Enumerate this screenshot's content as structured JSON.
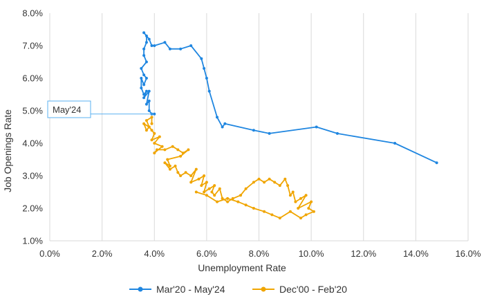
{
  "chart_data": {
    "type": "scatter",
    "xlabel": "Unemployment Rate",
    "ylabel": "Job Openings Rate",
    "xlim": [
      0,
      16
    ],
    "ylim": [
      1,
      8
    ],
    "x_ticks": [
      "0.0%",
      "2.0%",
      "4.0%",
      "6.0%",
      "8.0%",
      "10.0%",
      "12.0%",
      "14.0%",
      "16.0%"
    ],
    "y_ticks": [
      "1.0%",
      "2.0%",
      "3.0%",
      "4.0%",
      "5.0%",
      "6.0%",
      "7.0%",
      "8.0%"
    ],
    "grid": "vertical",
    "legend_position": "bottom",
    "annotation": {
      "text": "May'24",
      "x": 3.95,
      "y": 4.9
    },
    "series": [
      {
        "name": "Mar'20 - May'24",
        "color": "#1f86e0",
        "mode": "lines+markers",
        "points": [
          [
            14.8,
            3.4
          ],
          [
            13.2,
            4.0
          ],
          [
            11.0,
            4.3
          ],
          [
            10.2,
            4.5
          ],
          [
            8.4,
            4.3
          ],
          [
            7.8,
            4.4
          ],
          [
            6.7,
            4.6
          ],
          [
            6.6,
            4.5
          ],
          [
            6.4,
            4.8
          ],
          [
            6.1,
            5.6
          ],
          [
            6.0,
            6.0
          ],
          [
            5.9,
            6.3
          ],
          [
            5.8,
            6.6
          ],
          [
            5.4,
            7.0
          ],
          [
            5.0,
            6.9
          ],
          [
            4.6,
            6.9
          ],
          [
            4.4,
            7.1
          ],
          [
            4.0,
            7.0
          ],
          [
            3.9,
            7.0
          ],
          [
            3.8,
            7.2
          ],
          [
            3.6,
            7.4
          ],
          [
            3.7,
            7.3
          ],
          [
            3.7,
            7.1
          ],
          [
            3.6,
            6.9
          ],
          [
            3.6,
            6.7
          ],
          [
            3.7,
            6.5
          ],
          [
            3.5,
            6.3
          ],
          [
            3.6,
            6.1
          ],
          [
            3.7,
            6.0
          ],
          [
            3.6,
            5.8
          ],
          [
            3.5,
            6.0
          ],
          [
            3.5,
            5.7
          ],
          [
            3.6,
            5.5
          ],
          [
            3.7,
            5.6
          ],
          [
            3.6,
            5.4
          ],
          [
            3.8,
            5.6
          ],
          [
            3.7,
            5.2
          ],
          [
            3.8,
            5.3
          ],
          [
            3.8,
            5.0
          ],
          [
            3.9,
            4.9
          ],
          [
            4.0,
            4.9
          ]
        ]
      },
      {
        "name": "Dec'00 - Feb'20",
        "color": "#f0a500",
        "mode": "lines+markers",
        "points": [
          [
            3.9,
            4.6
          ],
          [
            3.9,
            4.8
          ],
          [
            3.7,
            4.7
          ],
          [
            3.8,
            4.5
          ],
          [
            3.6,
            4.6
          ],
          [
            3.7,
            4.4
          ],
          [
            3.8,
            4.5
          ],
          [
            3.9,
            4.4
          ],
          [
            4.0,
            4.3
          ],
          [
            3.9,
            4.1
          ],
          [
            4.2,
            4.2
          ],
          [
            4.0,
            4.0
          ],
          [
            4.3,
            3.9
          ],
          [
            4.0,
            3.7
          ],
          [
            4.1,
            3.8
          ],
          [
            4.4,
            3.8
          ],
          [
            4.7,
            3.9
          ],
          [
            4.9,
            3.8
          ],
          [
            5.1,
            3.7
          ],
          [
            5.3,
            3.8
          ],
          [
            5.0,
            3.6
          ],
          [
            4.5,
            3.5
          ],
          [
            4.6,
            3.3
          ],
          [
            4.4,
            3.4
          ],
          [
            4.6,
            3.2
          ],
          [
            4.8,
            3.3
          ],
          [
            4.9,
            3.1
          ],
          [
            5.0,
            3.0
          ],
          [
            5.2,
            3.1
          ],
          [
            5.4,
            3.0
          ],
          [
            5.6,
            3.2
          ],
          [
            5.4,
            2.8
          ],
          [
            5.7,
            2.9
          ],
          [
            5.9,
            3.0
          ],
          [
            5.8,
            2.7
          ],
          [
            6.0,
            2.8
          ],
          [
            5.9,
            2.5
          ],
          [
            6.1,
            2.6
          ],
          [
            6.3,
            2.7
          ],
          [
            6.2,
            2.5
          ],
          [
            6.3,
            2.4
          ],
          [
            6.5,
            2.6
          ],
          [
            6.6,
            2.3
          ],
          [
            6.8,
            2.2
          ],
          [
            7.0,
            2.3
          ],
          [
            7.3,
            2.4
          ],
          [
            7.5,
            2.6
          ],
          [
            7.8,
            2.8
          ],
          [
            8.0,
            2.9
          ],
          [
            8.2,
            2.8
          ],
          [
            8.4,
            2.9
          ],
          [
            8.6,
            2.8
          ],
          [
            8.8,
            2.7
          ],
          [
            9.0,
            2.9
          ],
          [
            9.1,
            2.7
          ],
          [
            9.2,
            2.4
          ],
          [
            9.3,
            2.5
          ],
          [
            9.4,
            2.2
          ],
          [
            9.6,
            2.3
          ],
          [
            9.8,
            2.4
          ],
          [
            9.5,
            2.0
          ],
          [
            10.0,
            2.2
          ],
          [
            9.9,
            2.0
          ],
          [
            10.1,
            1.9
          ],
          [
            9.8,
            1.8
          ],
          [
            9.6,
            1.7
          ],
          [
            9.2,
            1.9
          ],
          [
            8.8,
            1.7
          ],
          [
            8.5,
            1.8
          ],
          [
            8.2,
            1.9
          ],
          [
            7.8,
            2.0
          ],
          [
            7.5,
            2.1
          ],
          [
            7.2,
            2.2
          ],
          [
            6.8,
            2.3
          ],
          [
            6.4,
            2.2
          ],
          [
            6.0,
            2.4
          ],
          [
            5.6,
            2.5
          ]
        ]
      }
    ]
  }
}
